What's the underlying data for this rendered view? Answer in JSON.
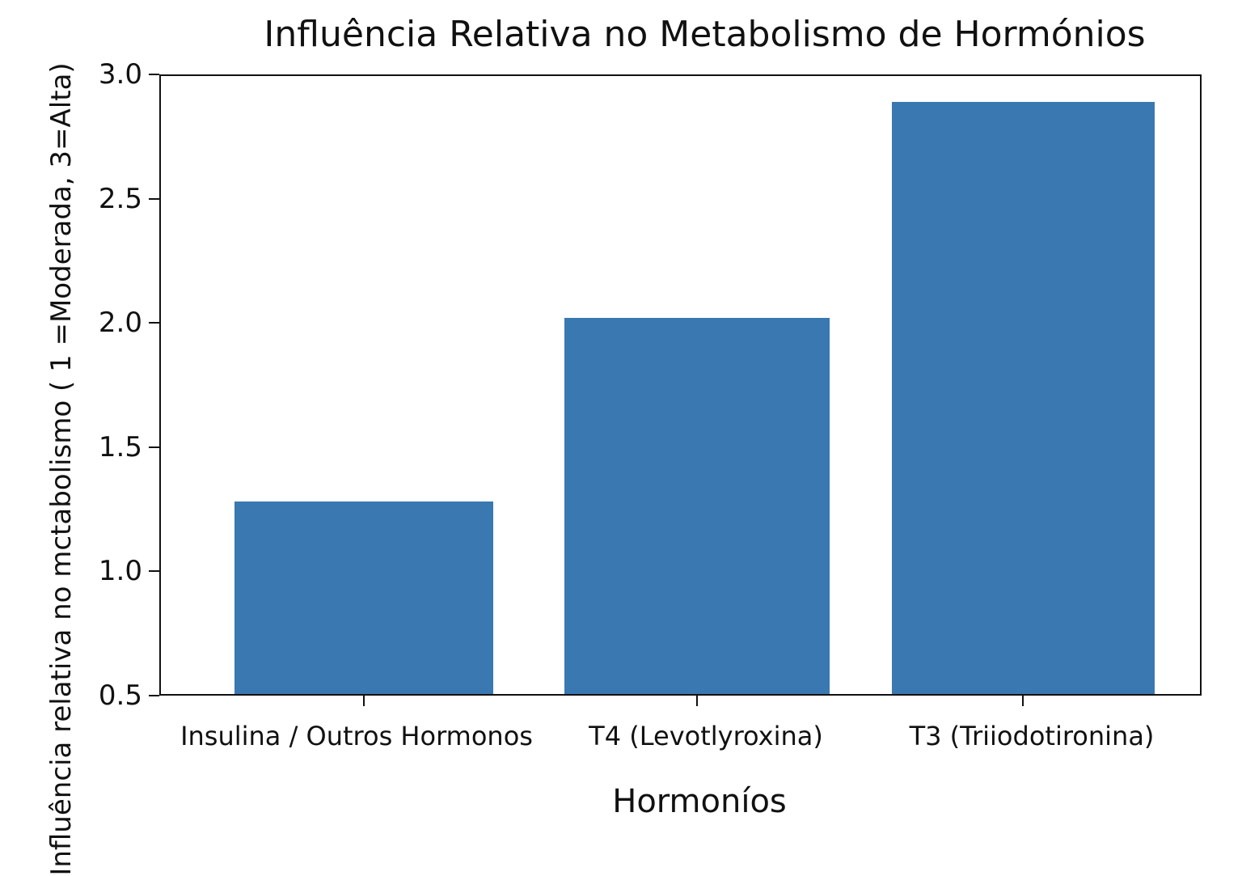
{
  "chart_data": {
    "type": "bar",
    "title": "Influência Relativa no Metabolismo de Hormónios",
    "xlabel": "Hormoníos",
    "ylabel": "Influência relativa no mctabolismo ( 1 =Moderada, 3=Alta)",
    "ylabel_visible": "ıncia relativa no mctabolismo ( 1 =Moderada, 3=Alta)",
    "categories": [
      "Insulina / Outros Hormonos",
      "T4 (Levotlyroxina)",
      "T3 (Triiodotironina)"
    ],
    "values": [
      1.28,
      2.02,
      2.89
    ],
    "ylim": [
      0.5,
      3.0
    ],
    "yticks": [
      "0.5",
      "1.0",
      "1.5",
      "2.0",
      "2.5",
      "3.0"
    ],
    "grid": false,
    "legend": null,
    "bar_color": "#3a78b2"
  }
}
